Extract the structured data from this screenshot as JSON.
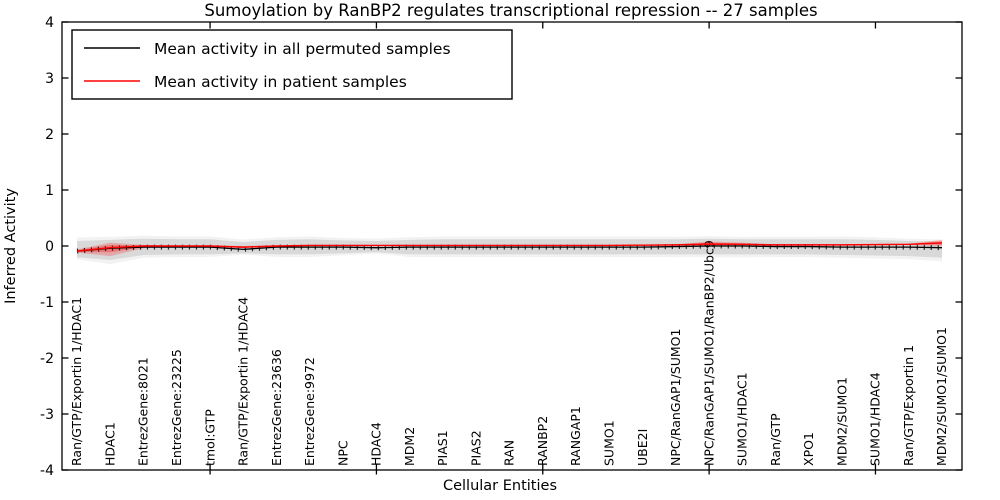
{
  "figure": {
    "title": "Sumoylation by RanBP2 regulates transcriptional repression -- 27 samples",
    "xlabel": "Cellular Entities",
    "ylabel": "Inferred Activity"
  },
  "legend": {
    "entries": [
      {
        "label": "Mean activity in all permuted samples",
        "color": "#000000"
      },
      {
        "label": "Mean activity in patient samples",
        "color": "#ff0000"
      }
    ]
  },
  "axes": {
    "y_ticks": [
      "4",
      "3",
      "2",
      "1",
      "0",
      "-1",
      "-2",
      "-3",
      "-4"
    ],
    "ylim": [
      -4,
      4
    ],
    "x_major_tick_indices": [
      4,
      9,
      14,
      19,
      24
    ]
  },
  "colors": {
    "permuted_line": "#000000",
    "patient_line": "#ff0000",
    "permuted_band": "rgba(0,0,0,0.10)",
    "permuted_band_outer": "rgba(0,0,0,0.05)",
    "patient_band": "rgba(255,0,0,0.30)",
    "patient_band_outer": "rgba(255,0,0,0.22)"
  },
  "chart_data": {
    "type": "line",
    "title": "Sumoylation by RanBP2 regulates transcriptional repression -- 27 samples",
    "xlabel": "Cellular Entities",
    "ylabel": "Inferred Activity",
    "ylim": [
      -4,
      4
    ],
    "grid": false,
    "legend_position": "upper left",
    "categories": [
      "Ran/GTP/Exportin 1/HDAC1",
      "HDAC1",
      "EntrezGene:8021",
      "EntrezGene:23225",
      "tmol:GTP",
      "Ran/GTP/Exportin 1/HDAC4",
      "EntrezGene:23636",
      "EntrezGene:9972",
      "NPC",
      "HDAC4",
      "MDM2",
      "PIAS1",
      "PIAS2",
      "RAN",
      "RANBP2",
      "RANGAP1",
      "SUMO1",
      "UBE2I",
      "NPC/RanGAP1/SUMO1",
      "NPC/RanGAP1/SUMO1/RanBP2/Ubc9",
      "SUMO1/HDAC1",
      "Ran/GTP",
      "XPO1",
      "MDM2/SUMO1",
      "SUMO1/HDAC4",
      "Ran/GTP/Exportin 1",
      "MDM2/SUMO1/SUMO1"
    ],
    "series": [
      {
        "name": "Mean activity in all permuted samples",
        "color": "#000000",
        "values": [
          -0.09,
          -0.04,
          -0.02,
          -0.02,
          -0.02,
          -0.06,
          -0.02,
          -0.02,
          -0.02,
          -0.03,
          -0.02,
          -0.02,
          -0.02,
          -0.02,
          -0.02,
          -0.02,
          -0.02,
          -0.02,
          -0.01,
          0.0,
          0.0,
          -0.01,
          -0.01,
          -0.02,
          -0.02,
          -0.02,
          -0.03
        ]
      },
      {
        "name": "Mean activity in patient samples",
        "color": "#ff0000",
        "values": [
          -0.09,
          -0.03,
          0.0,
          0.0,
          0.0,
          -0.02,
          0.0,
          0.01,
          0.01,
          0.01,
          0.01,
          0.01,
          0.01,
          0.01,
          0.01,
          0.01,
          0.01,
          0.015,
          0.02,
          0.035,
          0.03,
          0.02,
          0.02,
          0.02,
          0.025,
          0.03,
          0.055
        ]
      },
      {
        "name": "Permuted samples band upper",
        "color": "rgba(0,0,0,0.10)",
        "values": [
          0.09,
          0.11,
          0.13,
          0.12,
          0.12,
          0.07,
          0.11,
          0.12,
          0.1,
          0.09,
          0.11,
          0.12,
          0.12,
          0.12,
          0.12,
          0.12,
          0.12,
          0.12,
          0.12,
          0.13,
          0.12,
          0.12,
          0.12,
          0.12,
          0.11,
          0.09,
          0.08
        ]
      },
      {
        "name": "Permuted samples band lower",
        "color": "rgba(0,0,0,0.10)",
        "values": [
          -0.2,
          -0.25,
          -0.16,
          -0.15,
          -0.15,
          -0.13,
          -0.15,
          -0.15,
          -0.13,
          -0.11,
          -0.15,
          -0.15,
          -0.15,
          -0.15,
          -0.15,
          -0.15,
          -0.15,
          -0.15,
          -0.15,
          -0.15,
          -0.15,
          -0.15,
          -0.15,
          -0.16,
          -0.17,
          -0.18,
          -0.21
        ]
      },
      {
        "name": "Patient samples band upper",
        "color": "rgba(255,0,0,0.30)",
        "values": [
          -0.06,
          0.06,
          0.02,
          0.01,
          0.01,
          0.0,
          0.01,
          0.02,
          0.02,
          0.02,
          0.02,
          0.02,
          0.02,
          0.02,
          0.02,
          0.02,
          0.02,
          0.025,
          0.03,
          0.08,
          0.06,
          0.03,
          0.03,
          0.03,
          0.035,
          0.04,
          0.11
        ]
      },
      {
        "name": "Patient samples band lower",
        "color": "rgba(255,0,0,0.30)",
        "values": [
          -0.12,
          -0.18,
          -0.04,
          -0.01,
          -0.01,
          -0.04,
          -0.01,
          0.0,
          0.0,
          0.0,
          0.0,
          0.0,
          0.0,
          0.0,
          0.0,
          0.0,
          0.0,
          0.005,
          0.01,
          -0.005,
          0.0,
          0.01,
          0.01,
          0.01,
          0.01,
          0.015,
          0.0
        ]
      }
    ]
  }
}
